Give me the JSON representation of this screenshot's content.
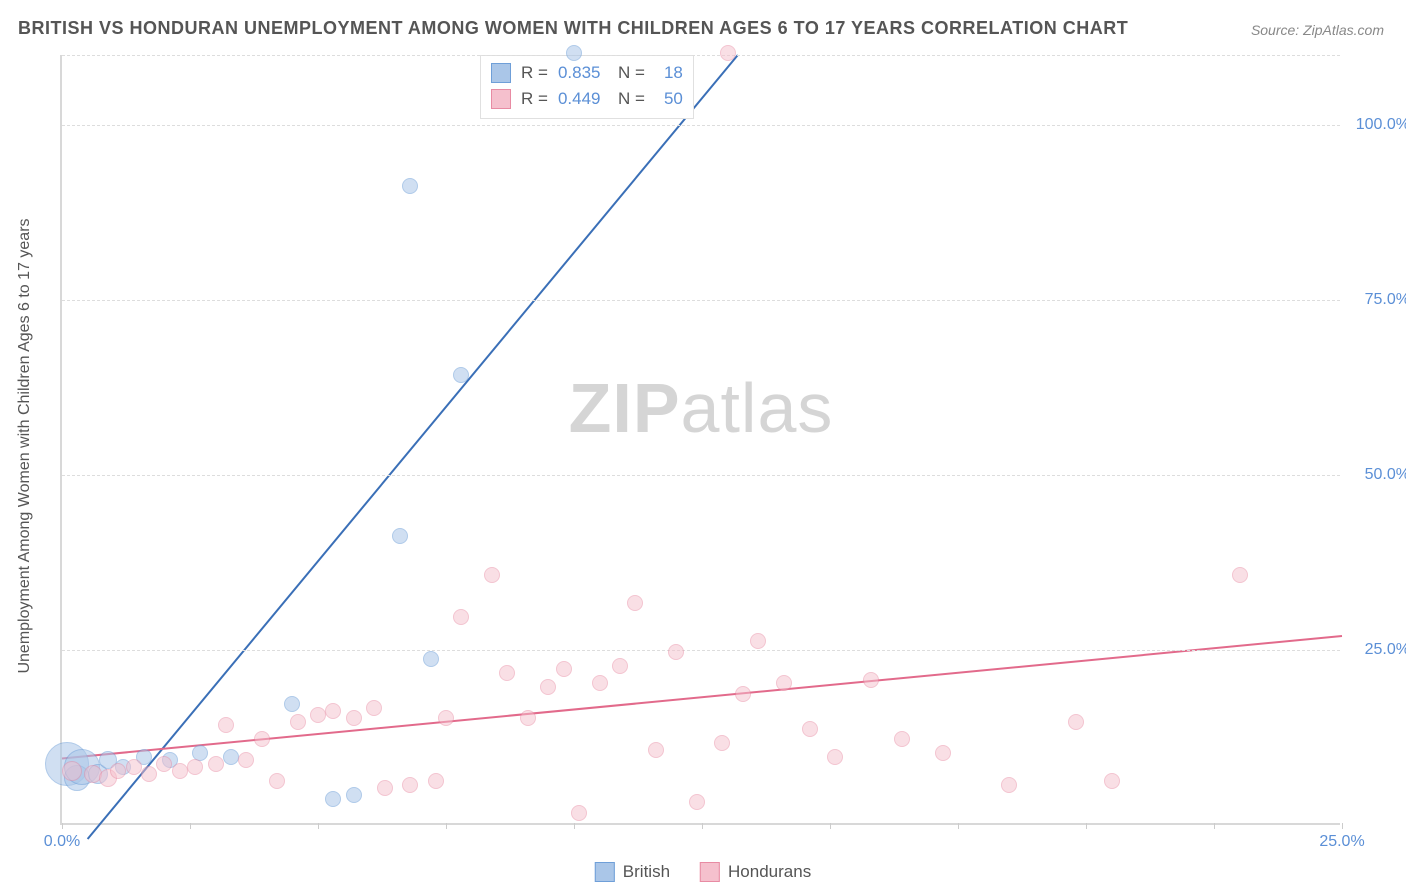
{
  "title": "BRITISH VS HONDURAN UNEMPLOYMENT AMONG WOMEN WITH CHILDREN AGES 6 TO 17 YEARS CORRELATION CHART",
  "source": "Source: ZipAtlas.com",
  "y_axis_label": "Unemployment Among Women with Children Ages 6 to 17 years",
  "watermark_a": "ZIP",
  "watermark_b": "atlas",
  "chart": {
    "type": "scatter",
    "xlim": [
      0,
      25
    ],
    "ylim": [
      0,
      110
    ],
    "x_ticks": [
      0,
      2.5,
      5,
      7.5,
      10,
      12.5,
      15,
      17.5,
      20,
      22.5,
      25
    ],
    "x_tick_labels": {
      "0": "0.0%",
      "25": "25.0%"
    },
    "y_gridlines": [
      25,
      50,
      75,
      100,
      110
    ],
    "y_tick_labels": {
      "25": "25.0%",
      "50": "50.0%",
      "75": "75.0%",
      "100": "100.0%"
    },
    "background_color": "#ffffff",
    "grid_color": "#dddddd",
    "axis_color": "#d8d8d8",
    "tick_label_color": "#5b8fd6",
    "series": [
      {
        "name": "British",
        "fill": "#aac6e8",
        "stroke": "#6f9fd8",
        "fill_opacity": 0.55,
        "trend": {
          "x1": 0.5,
          "y1": -2,
          "x2": 13.2,
          "y2": 110,
          "color": "#3a6fb7",
          "width": 2
        },
        "stats": {
          "R_label": "R =",
          "R": "0.835",
          "N_label": "N =",
          "N": "18"
        },
        "points": [
          {
            "x": 0.1,
            "y": 8.5,
            "r": 22
          },
          {
            "x": 0.3,
            "y": 6.5,
            "r": 13
          },
          {
            "x": 0.4,
            "y": 8.0,
            "r": 18
          },
          {
            "x": 0.7,
            "y": 7.0,
            "r": 10
          },
          {
            "x": 0.9,
            "y": 9.0,
            "r": 9
          },
          {
            "x": 1.2,
            "y": 8.0,
            "r": 8
          },
          {
            "x": 1.6,
            "y": 9.5,
            "r": 8
          },
          {
            "x": 2.1,
            "y": 9.0,
            "r": 8
          },
          {
            "x": 2.7,
            "y": 10.0,
            "r": 8
          },
          {
            "x": 3.3,
            "y": 9.5,
            "r": 8
          },
          {
            "x": 4.5,
            "y": 17.0,
            "r": 8
          },
          {
            "x": 5.3,
            "y": 3.5,
            "r": 8
          },
          {
            "x": 5.7,
            "y": 4.0,
            "r": 8
          },
          {
            "x": 6.6,
            "y": 41.0,
            "r": 8
          },
          {
            "x": 7.2,
            "y": 23.5,
            "r": 8
          },
          {
            "x": 6.8,
            "y": 91.0,
            "r": 8
          },
          {
            "x": 7.8,
            "y": 64.0,
            "r": 8
          },
          {
            "x": 10.0,
            "y": 110.0,
            "r": 8
          }
        ]
      },
      {
        "name": "Hondurans",
        "fill": "#f5c0cd",
        "stroke": "#e88ba3",
        "fill_opacity": 0.5,
        "trend": {
          "x1": 0,
          "y1": 9.5,
          "x2": 25,
          "y2": 27,
          "color": "#e26a8b",
          "width": 2
        },
        "stats": {
          "R_label": "R =",
          "R": "0.449",
          "N_label": "N =",
          "N": "50"
        },
        "points": [
          {
            "x": 0.2,
            "y": 7.5,
            "r": 10
          },
          {
            "x": 0.6,
            "y": 7.0,
            "r": 9
          },
          {
            "x": 0.9,
            "y": 6.5,
            "r": 9
          },
          {
            "x": 1.1,
            "y": 7.5,
            "r": 8
          },
          {
            "x": 1.4,
            "y": 8.0,
            "r": 8
          },
          {
            "x": 1.7,
            "y": 7.0,
            "r": 8
          },
          {
            "x": 2.0,
            "y": 8.5,
            "r": 8
          },
          {
            "x": 2.3,
            "y": 7.5,
            "r": 8
          },
          {
            "x": 2.6,
            "y": 8.0,
            "r": 8
          },
          {
            "x": 3.0,
            "y": 8.5,
            "r": 8
          },
          {
            "x": 3.2,
            "y": 14.0,
            "r": 8
          },
          {
            "x": 3.6,
            "y": 9.0,
            "r": 8
          },
          {
            "x": 3.9,
            "y": 12.0,
            "r": 8
          },
          {
            "x": 4.2,
            "y": 6.0,
            "r": 8
          },
          {
            "x": 4.6,
            "y": 14.5,
            "r": 8
          },
          {
            "x": 5.0,
            "y": 15.5,
            "r": 8
          },
          {
            "x": 5.3,
            "y": 16.0,
            "r": 8
          },
          {
            "x": 5.7,
            "y": 15.0,
            "r": 8
          },
          {
            "x": 6.1,
            "y": 16.5,
            "r": 8
          },
          {
            "x": 6.3,
            "y": 5.0,
            "r": 8
          },
          {
            "x": 6.8,
            "y": 5.5,
            "r": 8
          },
          {
            "x": 7.3,
            "y": 6.0,
            "r": 8
          },
          {
            "x": 7.5,
            "y": 15.0,
            "r": 8
          },
          {
            "x": 7.8,
            "y": 29.5,
            "r": 8
          },
          {
            "x": 8.4,
            "y": 35.5,
            "r": 8
          },
          {
            "x": 8.7,
            "y": 21.5,
            "r": 8
          },
          {
            "x": 9.1,
            "y": 15.0,
            "r": 8
          },
          {
            "x": 9.5,
            "y": 19.5,
            "r": 8
          },
          {
            "x": 9.8,
            "y": 22.0,
            "r": 8
          },
          {
            "x": 10.1,
            "y": 1.5,
            "r": 8
          },
          {
            "x": 10.5,
            "y": 20.0,
            "r": 8
          },
          {
            "x": 10.9,
            "y": 22.5,
            "r": 8
          },
          {
            "x": 11.2,
            "y": 31.5,
            "r": 8
          },
          {
            "x": 11.6,
            "y": 10.5,
            "r": 8
          },
          {
            "x": 12.0,
            "y": 24.5,
            "r": 8
          },
          {
            "x": 12.4,
            "y": 3.0,
            "r": 8
          },
          {
            "x": 12.9,
            "y": 11.5,
            "r": 8
          },
          {
            "x": 13.3,
            "y": 18.5,
            "r": 8
          },
          {
            "x": 13.6,
            "y": 26.0,
            "r": 8
          },
          {
            "x": 14.1,
            "y": 20.0,
            "r": 8
          },
          {
            "x": 14.6,
            "y": 13.5,
            "r": 8
          },
          {
            "x": 15.1,
            "y": 9.5,
            "r": 8
          },
          {
            "x": 15.8,
            "y": 20.5,
            "r": 8
          },
          {
            "x": 16.4,
            "y": 12.0,
            "r": 8
          },
          {
            "x": 17.2,
            "y": 10.0,
            "r": 8
          },
          {
            "x": 18.5,
            "y": 5.5,
            "r": 8
          },
          {
            "x": 19.8,
            "y": 14.5,
            "r": 8
          },
          {
            "x": 20.5,
            "y": 6.0,
            "r": 8
          },
          {
            "x": 23.0,
            "y": 35.5,
            "r": 8
          },
          {
            "x": 13.0,
            "y": 110.0,
            "r": 8
          }
        ]
      }
    ]
  },
  "legend_bottom": [
    {
      "label": "British",
      "fill": "#aac6e8",
      "stroke": "#6f9fd8"
    },
    {
      "label": "Hondurans",
      "fill": "#f5c0cd",
      "stroke": "#e88ba3"
    }
  ]
}
